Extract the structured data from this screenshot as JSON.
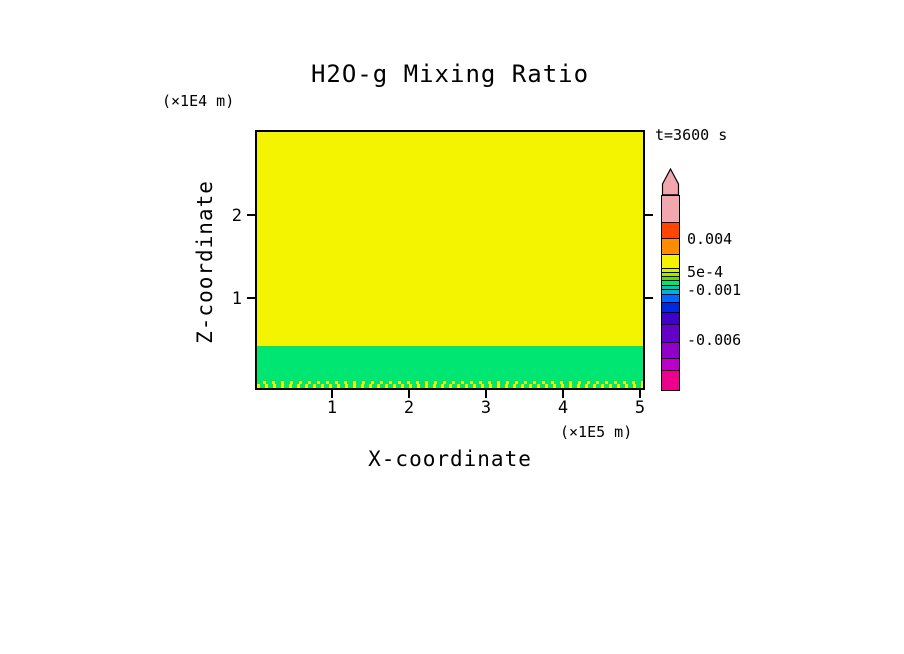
{
  "window": {
    "background": "#ffffff"
  },
  "chart_data": {
    "type": "heatmap",
    "title": "H2O-g Mixing Ratio",
    "time_label": "t=3600 s",
    "x_axis": {
      "label": "X-coordinate",
      "unit": "(×1E5 m)",
      "ticks": [
        "1",
        "2",
        "3",
        "4",
        "5"
      ],
      "range_approx_x1e5_m": [
        0,
        5.1
      ]
    },
    "z_axis": {
      "label": "Z-coordinate",
      "unit": "(×1E4 m)",
      "ticks": [
        "2",
        "1"
      ],
      "range_approx_x1e4_m": [
        -0.1,
        3.0
      ]
    },
    "field": {
      "description": "Two-layer H2O-g mixing-ratio field at t=3600 s: a uniform yellow upper layer (value in the yellow colorbar band between 5e-4 and 0.004) above z≈0.5×1E4 m, and a green lower layer (value near/just below 5e-4) from the surface up to z≈0.5×1E4 m, with a dithered yellow/green speckle band right at the surface.",
      "interface_z_x1e4_m": 0.5,
      "layers": [
        {
          "name": "upper-layer",
          "color": "#f4f400",
          "value_band": "5e-4 … 0.004",
          "z_from": 0.5,
          "z_to": 3.0
        },
        {
          "name": "lower-layer",
          "color": "#00e673",
          "value_band": "≈0 … 5e-4",
          "z_from": -0.1,
          "z_to": 0.5
        }
      ]
    },
    "colorbar": {
      "arrow_color": "#f2a6ae",
      "labels": [
        {
          "text": "0.004"
        },
        {
          "text": "5e-4"
        },
        {
          "text": "-0.001"
        },
        {
          "text": "-0.006"
        }
      ],
      "segments": [
        {
          "color": "#f2a6ae",
          "h": 26
        },
        {
          "color": "#ff4500",
          "h": 16
        },
        {
          "color": "#ff8c00",
          "h": 16
        },
        {
          "color": "#f4f400",
          "h": 14
        },
        {
          "color": "#d8ee00",
          "h": 4
        },
        {
          "color": "#aae400",
          "h": 4
        },
        {
          "color": "#5bdc00",
          "h": 4
        },
        {
          "color": "#00e673",
          "h": 5
        },
        {
          "color": "#00c9a0",
          "h": 4
        },
        {
          "color": "#00b0e0",
          "h": 5
        },
        {
          "color": "#0066ff",
          "h": 8
        },
        {
          "color": "#0028dc",
          "h": 10
        },
        {
          "color": "#4000c8",
          "h": 12
        },
        {
          "color": "#6400c8",
          "h": 18
        },
        {
          "color": "#9000c8",
          "h": 16
        },
        {
          "color": "#bc00c8",
          "h": 12
        },
        {
          "color": "#ec008c",
          "h": 20
        }
      ]
    }
  }
}
